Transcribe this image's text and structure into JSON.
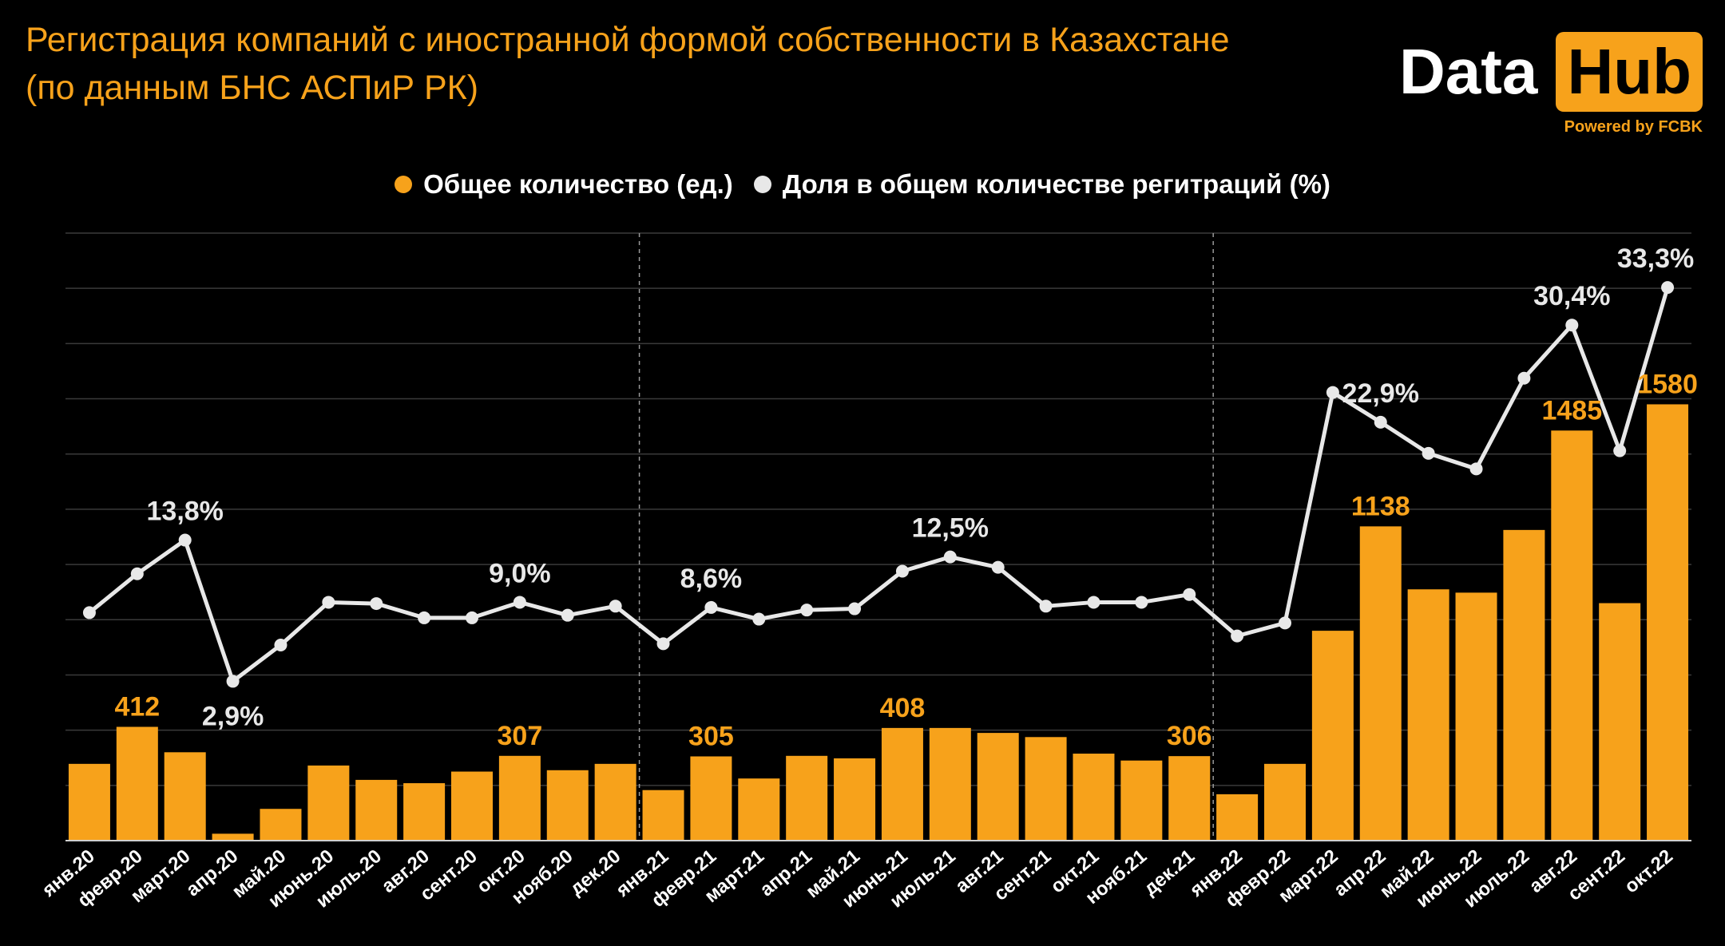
{
  "title": {
    "line1": "Регистрация компаний с иностранной формой собственности в Казахстане",
    "line2": "(по данным БНС АСПиР РК)"
  },
  "logo": {
    "data": "Data",
    "hub": "Hub",
    "powered": "Powered by FCBK"
  },
  "colors": {
    "background": "#000000",
    "bars": "#f7a21b",
    "line": "#e8e8e8",
    "grid": "#3a3a3a",
    "title": "#f7a21b"
  },
  "chart_data": {
    "type": "bar+line",
    "legend": [
      {
        "name": "Общее количество (ед.)",
        "color": "#f7a21b"
      },
      {
        "name": "Доля в общем количестве регитраций (%)",
        "color": "#e8e8e8"
      }
    ],
    "legend_position": "top-center",
    "categories": [
      "янв.20",
      "февр.20",
      "март.20",
      "апр.20",
      "май.20",
      "июнь.20",
      "июль.20",
      "авг.20",
      "сент.20",
      "окт.20",
      "нояб.20",
      "дек.20",
      "янв.21",
      "февр.21",
      "март.21",
      "апр.21",
      "май.21",
      "июнь.21",
      "июль.21",
      "авг.21",
      "сент.21",
      "окт.21",
      "нояб.21",
      "дек.21",
      "янв.22",
      "февр.22",
      "март.22",
      "апр.22",
      "май.22",
      "июнь.22",
      "июль.22",
      "авг.22",
      "сент.22",
      "окт.22"
    ],
    "series": [
      {
        "name": "Общее количество (ед.)",
        "kind": "bar",
        "values": [
          278,
          412,
          320,
          25,
          115,
          272,
          220,
          208,
          250,
          307,
          255,
          278,
          183,
          305,
          225,
          307,
          298,
          408,
          408,
          390,
          375,
          315,
          290,
          306,
          168,
          278,
          760,
          1138,
          910,
          898,
          1125,
          1485,
          860,
          1580
        ]
      },
      {
        "name": "Доля в общем количестве регитраций (%)",
        "kind": "line",
        "values": [
          8.2,
          11.2,
          13.8,
          2.9,
          5.7,
          9.0,
          8.9,
          7.8,
          7.8,
          9.0,
          8.0,
          8.7,
          5.8,
          8.6,
          7.7,
          8.4,
          8.5,
          11.4,
          12.5,
          11.7,
          8.7,
          9.0,
          9.0,
          9.6,
          6.4,
          7.4,
          25.2,
          22.9,
          20.5,
          19.3,
          26.3,
          30.4,
          20.7,
          33.3
        ]
      }
    ],
    "bar_labels": [
      {
        "index": 1,
        "text": "412"
      },
      {
        "index": 9,
        "text": "307"
      },
      {
        "index": 13,
        "text": "305"
      },
      {
        "index": 17,
        "text": "408"
      },
      {
        "index": 23,
        "text": "306"
      },
      {
        "index": 27,
        "text": "1138"
      },
      {
        "index": 31,
        "text": "1485"
      },
      {
        "index": 33,
        "text": "1580"
      }
    ],
    "line_labels": [
      {
        "index": 2,
        "text": "13,8%"
      },
      {
        "index": 3,
        "text": "2,9%"
      },
      {
        "index": 9,
        "text": "9,0%"
      },
      {
        "index": 13,
        "text": "8,6%"
      },
      {
        "index": 18,
        "text": "12,5%"
      },
      {
        "index": 27,
        "text": "22,9%"
      },
      {
        "index": 31,
        "text": "30,4%"
      },
      {
        "index": 33,
        "text": "33,3%"
      }
    ],
    "year_separators_after": [
      11,
      23
    ],
    "grid": true,
    "bar_ylim": [
      0,
      2200
    ],
    "line_ylim": [
      -9.4,
      37.5
    ]
  }
}
